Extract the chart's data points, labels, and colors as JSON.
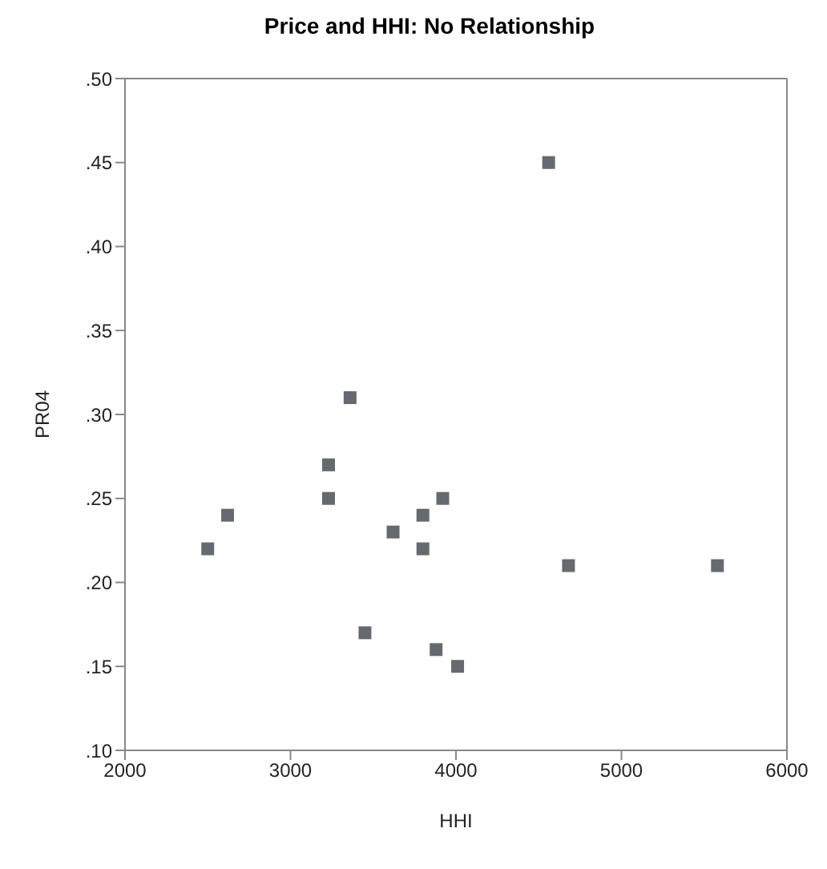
{
  "chart_data": {
    "type": "scatter",
    "title": "Price and HHI: No Relationship",
    "xlabel": "HHI",
    "ylabel": "PR04",
    "x": [
      4560,
      3360,
      3230,
      3230,
      2620,
      2500,
      3920,
      3800,
      3620,
      3800,
      4680,
      5580,
      3450,
      3880,
      4010
    ],
    "values": [
      0.45,
      0.31,
      0.27,
      0.25,
      0.24,
      0.22,
      0.25,
      0.24,
      0.23,
      0.22,
      0.21,
      0.21,
      0.17,
      0.16,
      0.15
    ],
    "color": "#666a70",
    "marker": "square",
    "xlim": [
      2000,
      6000
    ],
    "xticks": [
      2000,
      3000,
      4000,
      5000,
      6000
    ],
    "ylim": [
      0.1,
      0.5
    ],
    "yticks": [
      {
        "value": 0.1,
        "label": ".10"
      },
      {
        "value": 0.15,
        "label": ".15"
      },
      {
        "value": 0.2,
        "label": ".20"
      },
      {
        "value": 0.25,
        "label": ".25"
      },
      {
        "value": 0.3,
        "label": ".30"
      },
      {
        "value": 0.35,
        "label": ".35"
      },
      {
        "value": 0.4,
        "label": ".40"
      },
      {
        "value": 0.45,
        "label": ".45"
      },
      {
        "value": 0.5,
        "label": ".50"
      }
    ],
    "grid": false,
    "legend": false
  }
}
